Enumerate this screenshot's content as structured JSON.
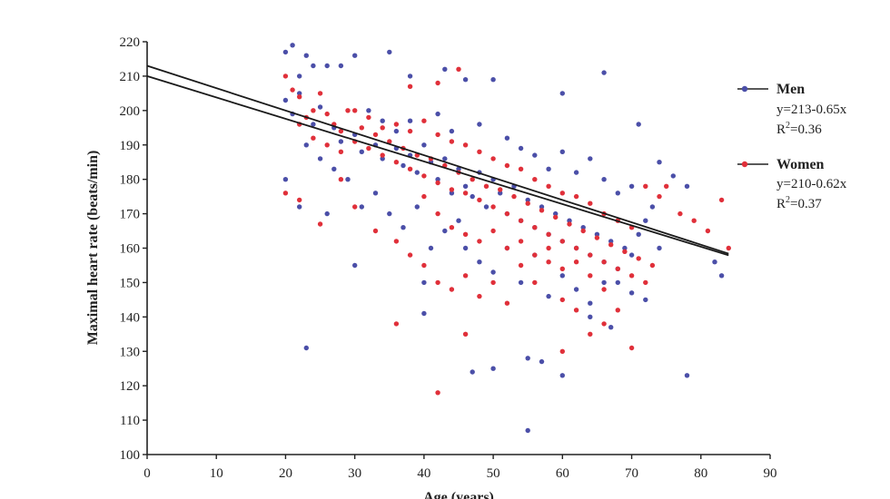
{
  "chart_data": {
    "type": "scatter",
    "title": "",
    "xlabel": "Age (years)",
    "ylabel": "Maximal heart rate (beats/min)",
    "xlim": [
      0,
      90
    ],
    "ylim": [
      100,
      220
    ],
    "xticks": [
      0,
      10,
      20,
      30,
      40,
      50,
      60,
      70,
      80,
      90
    ],
    "yticks": [
      100,
      110,
      120,
      130,
      140,
      150,
      160,
      170,
      180,
      190,
      200,
      210,
      220
    ],
    "grid": false,
    "legend_position": "right",
    "series": [
      {
        "name": "Men",
        "color": "#4b4fa8",
        "equation": "y=213-0.65x",
        "r2_prefix": "R",
        "r2_sup": "2",
        "r2_value": "=0.36",
        "regression": {
          "intercept": 213,
          "slope": -0.65,
          "x_range": [
            0,
            84
          ]
        },
        "points": [
          [
            20,
            217
          ],
          [
            21,
            219
          ],
          [
            22,
            210
          ],
          [
            23,
            216
          ],
          [
            24,
            213
          ],
          [
            26,
            213
          ],
          [
            28,
            213
          ],
          [
            30,
            216
          ],
          [
            35,
            217
          ],
          [
            38,
            210
          ],
          [
            43,
            212
          ],
          [
            46,
            209
          ],
          [
            50,
            209
          ],
          [
            60,
            205
          ],
          [
            66,
            211
          ],
          [
            71,
            196
          ],
          [
            74,
            185
          ],
          [
            76,
            181
          ],
          [
            78,
            178
          ],
          [
            83,
            152
          ],
          [
            82,
            156
          ],
          [
            78,
            123
          ],
          [
            60,
            123
          ],
          [
            55,
            107
          ],
          [
            55,
            128
          ],
          [
            57,
            127
          ],
          [
            50,
            125
          ],
          [
            47,
            124
          ],
          [
            23,
            131
          ],
          [
            40,
            141
          ],
          [
            40,
            150
          ],
          [
            30,
            155
          ],
          [
            26,
            170
          ],
          [
            22,
            172
          ],
          [
            20,
            180
          ],
          [
            64,
            140
          ],
          [
            67,
            137
          ],
          [
            70,
            147
          ],
          [
            72,
            145
          ],
          [
            68,
            150
          ],
          [
            20,
            203
          ],
          [
            21,
            199
          ],
          [
            22,
            205
          ],
          [
            24,
            196
          ],
          [
            25,
            201
          ],
          [
            27,
            195
          ],
          [
            28,
            191
          ],
          [
            30,
            193
          ],
          [
            31,
            188
          ],
          [
            33,
            190
          ],
          [
            34,
            186
          ],
          [
            36,
            189
          ],
          [
            37,
            184
          ],
          [
            38,
            187
          ],
          [
            39,
            182
          ],
          [
            40,
            190
          ],
          [
            41,
            185
          ],
          [
            42,
            180
          ],
          [
            43,
            186
          ],
          [
            44,
            176
          ],
          [
            45,
            183
          ],
          [
            46,
            178
          ],
          [
            47,
            175
          ],
          [
            48,
            182
          ],
          [
            49,
            172
          ],
          [
            50,
            180
          ],
          [
            51,
            176
          ],
          [
            52,
            170
          ],
          [
            53,
            178
          ],
          [
            54,
            168
          ],
          [
            55,
            174
          ],
          [
            56,
            166
          ],
          [
            57,
            172
          ],
          [
            58,
            164
          ],
          [
            59,
            170
          ],
          [
            60,
            162
          ],
          [
            61,
            168
          ],
          [
            62,
            160
          ],
          [
            63,
            166
          ],
          [
            64,
            158
          ],
          [
            65,
            164
          ],
          [
            66,
            156
          ],
          [
            67,
            162
          ],
          [
            68,
            154
          ],
          [
            69,
            160
          ],
          [
            70,
            158
          ],
          [
            71,
            164
          ],
          [
            72,
            168
          ],
          [
            73,
            172
          ],
          [
            74,
            160
          ],
          [
            32,
            200
          ],
          [
            34,
            197
          ],
          [
            36,
            194
          ],
          [
            38,
            197
          ],
          [
            42,
            199
          ],
          [
            44,
            194
          ],
          [
            48,
            196
          ],
          [
            52,
            192
          ],
          [
            54,
            189
          ],
          [
            56,
            187
          ],
          [
            58,
            183
          ],
          [
            60,
            188
          ],
          [
            62,
            182
          ],
          [
            64,
            186
          ],
          [
            66,
            180
          ],
          [
            68,
            176
          ],
          [
            70,
            178
          ],
          [
            46,
            160
          ],
          [
            48,
            156
          ],
          [
            50,
            153
          ],
          [
            52,
            160
          ],
          [
            54,
            150
          ],
          [
            56,
            158
          ],
          [
            58,
            146
          ],
          [
            60,
            152
          ],
          [
            62,
            148
          ],
          [
            64,
            144
          ],
          [
            66,
            150
          ],
          [
            35,
            170
          ],
          [
            37,
            166
          ],
          [
            39,
            172
          ],
          [
            41,
            160
          ],
          [
            43,
            165
          ],
          [
            45,
            168
          ],
          [
            33,
            176
          ],
          [
            31,
            172
          ],
          [
            29,
            180
          ],
          [
            27,
            183
          ],
          [
            25,
            186
          ],
          [
            23,
            190
          ]
        ]
      },
      {
        "name": "Women",
        "color": "#e0303a",
        "equation": "y=210-0.62x",
        "r2_prefix": "R",
        "r2_sup": "2",
        "r2_value": "=0.37",
        "regression": {
          "intercept": 210,
          "slope": -0.62,
          "x_range": [
            0,
            84
          ]
        },
        "points": [
          [
            20,
            210
          ],
          [
            21,
            206
          ],
          [
            22,
            204
          ],
          [
            23,
            198
          ],
          [
            24,
            200
          ],
          [
            25,
            205
          ],
          [
            26,
            199
          ],
          [
            27,
            196
          ],
          [
            28,
            194
          ],
          [
            29,
            200
          ],
          [
            30,
            191
          ],
          [
            31,
            195
          ],
          [
            32,
            189
          ],
          [
            33,
            193
          ],
          [
            34,
            187
          ],
          [
            35,
            191
          ],
          [
            36,
            185
          ],
          [
            37,
            189
          ],
          [
            38,
            183
          ],
          [
            39,
            187
          ],
          [
            40,
            181
          ],
          [
            41,
            186
          ],
          [
            42,
            179
          ],
          [
            43,
            184
          ],
          [
            44,
            177
          ],
          [
            45,
            182
          ],
          [
            46,
            176
          ],
          [
            47,
            180
          ],
          [
            48,
            174
          ],
          [
            49,
            178
          ],
          [
            50,
            172
          ],
          [
            51,
            177
          ],
          [
            52,
            170
          ],
          [
            53,
            175
          ],
          [
            54,
            168
          ],
          [
            55,
            173
          ],
          [
            56,
            166
          ],
          [
            57,
            171
          ],
          [
            58,
            164
          ],
          [
            59,
            169
          ],
          [
            60,
            162
          ],
          [
            61,
            167
          ],
          [
            62,
            160
          ],
          [
            63,
            165
          ],
          [
            64,
            158
          ],
          [
            65,
            163
          ],
          [
            66,
            156
          ],
          [
            67,
            161
          ],
          [
            68,
            154
          ],
          [
            69,
            159
          ],
          [
            70,
            152
          ],
          [
            71,
            157
          ],
          [
            72,
            150
          ],
          [
            73,
            155
          ],
          [
            20,
            176
          ],
          [
            22,
            174
          ],
          [
            25,
            167
          ],
          [
            28,
            180
          ],
          [
            30,
            172
          ],
          [
            33,
            165
          ],
          [
            36,
            162
          ],
          [
            38,
            158
          ],
          [
            40,
            155
          ],
          [
            42,
            150
          ],
          [
            44,
            148
          ],
          [
            46,
            152
          ],
          [
            48,
            146
          ],
          [
            50,
            150
          ],
          [
            52,
            144
          ],
          [
            54,
            155
          ],
          [
            56,
            150
          ],
          [
            58,
            160
          ],
          [
            60,
            145
          ],
          [
            62,
            142
          ],
          [
            64,
            135
          ],
          [
            66,
            138
          ],
          [
            68,
            142
          ],
          [
            70,
            131
          ],
          [
            36,
            138
          ],
          [
            42,
            118
          ],
          [
            46,
            135
          ],
          [
            60,
            130
          ],
          [
            75,
            178
          ],
          [
            77,
            170
          ],
          [
            79,
            168
          ],
          [
            81,
            165
          ],
          [
            83,
            174
          ],
          [
            84,
            160
          ],
          [
            72,
            178
          ],
          [
            74,
            175
          ],
          [
            22,
            196
          ],
          [
            24,
            192
          ],
          [
            26,
            190
          ],
          [
            28,
            188
          ],
          [
            30,
            200
          ],
          [
            32,
            198
          ],
          [
            34,
            195
          ],
          [
            36,
            196
          ],
          [
            38,
            194
          ],
          [
            40,
            197
          ],
          [
            42,
            193
          ],
          [
            44,
            191
          ],
          [
            46,
            190
          ],
          [
            48,
            188
          ],
          [
            50,
            186
          ],
          [
            52,
            184
          ],
          [
            54,
            183
          ],
          [
            56,
            180
          ],
          [
            58,
            178
          ],
          [
            60,
            176
          ],
          [
            62,
            175
          ],
          [
            64,
            173
          ],
          [
            66,
            170
          ],
          [
            68,
            168
          ],
          [
            70,
            166
          ],
          [
            40,
            175
          ],
          [
            42,
            170
          ],
          [
            44,
            166
          ],
          [
            46,
            164
          ],
          [
            48,
            162
          ],
          [
            50,
            165
          ],
          [
            52,
            160
          ],
          [
            54,
            162
          ],
          [
            56,
            158
          ],
          [
            58,
            156
          ],
          [
            60,
            154
          ],
          [
            62,
            156
          ],
          [
            64,
            152
          ],
          [
            66,
            148
          ],
          [
            45,
            212
          ],
          [
            42,
            208
          ],
          [
            38,
            207
          ]
        ]
      }
    ]
  }
}
